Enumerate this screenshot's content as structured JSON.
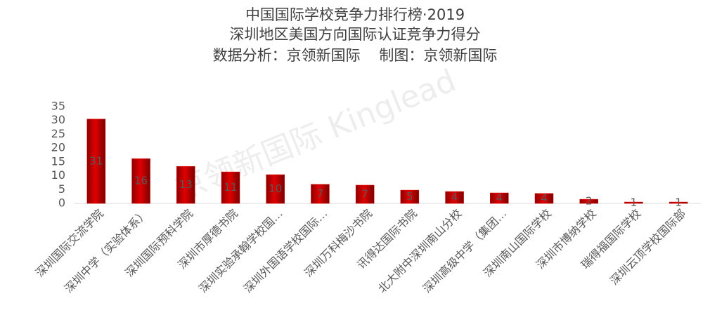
{
  "chart_data": {
    "type": "bar",
    "title": "中国国际学校竞争力排行榜·2019",
    "subtitle": "深圳地区美国方向国际认证竞争力得分",
    "source": "数据分析：京领新国际    制图：京领新国际",
    "watermark": "京领新国际 Kinglead",
    "categories": [
      "深圳国际交流学院",
      "深圳中学（实验体系）",
      "深圳国际预科学院",
      "深圳市厚德书院",
      "深圳实验承翰学校国…",
      "深圳外国语学校国际…",
      "深圳万科梅沙书院",
      "讯得达国际书院",
      "北大附中深圳南山分校",
      "深圳高级中学（集团…",
      "深圳南山国际学校",
      "深圳市博纳学校",
      "瑞得福国际学校",
      "深圳云顶学校国际部"
    ],
    "values": [
      30.5,
      16.2,
      13.4,
      11.4,
      10.4,
      6.9,
      6.6,
      4.8,
      4.3,
      3.8,
      3.6,
      1.5,
      0.5,
      0.5
    ],
    "value_labels": [
      "31",
      "16",
      "13",
      "11",
      "10",
      "7",
      "7",
      "5",
      "4",
      "4",
      "4",
      "2",
      "1",
      "1"
    ],
    "color": "#e00000",
    "ylim": [
      0,
      35
    ],
    "yticks": [
      0,
      5,
      10,
      15,
      20,
      25,
      30,
      35
    ]
  }
}
